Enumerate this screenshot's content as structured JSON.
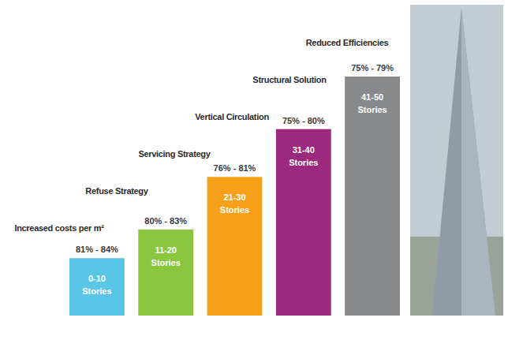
{
  "chart_data": {
    "type": "bar",
    "categories": [
      "0-10 Stories",
      "11-20 Stories",
      "21-30 Stories",
      "31-40 Stories",
      "41-50 Stories"
    ],
    "values": [
      12,
      18,
      29,
      39,
      50
    ],
    "ylim": [
      0,
      50
    ],
    "colors": [
      "#5bc5e8",
      "#8cc63f",
      "#f7a11a",
      "#9b2a7e",
      "#88898b"
    ],
    "range_labels": [
      "81% - 84%",
      "80% - 83%",
      "76% - 81%",
      "75% - 80%",
      "75% - 79%"
    ],
    "annotations": [
      "Increased costs per m²",
      "Refuse Strategy",
      "Servicing Strategy",
      "Vertical Circulation",
      "Structural Solution",
      "Reduced Efficiencies"
    ],
    "tick_labels": false,
    "grid": false
  }
}
